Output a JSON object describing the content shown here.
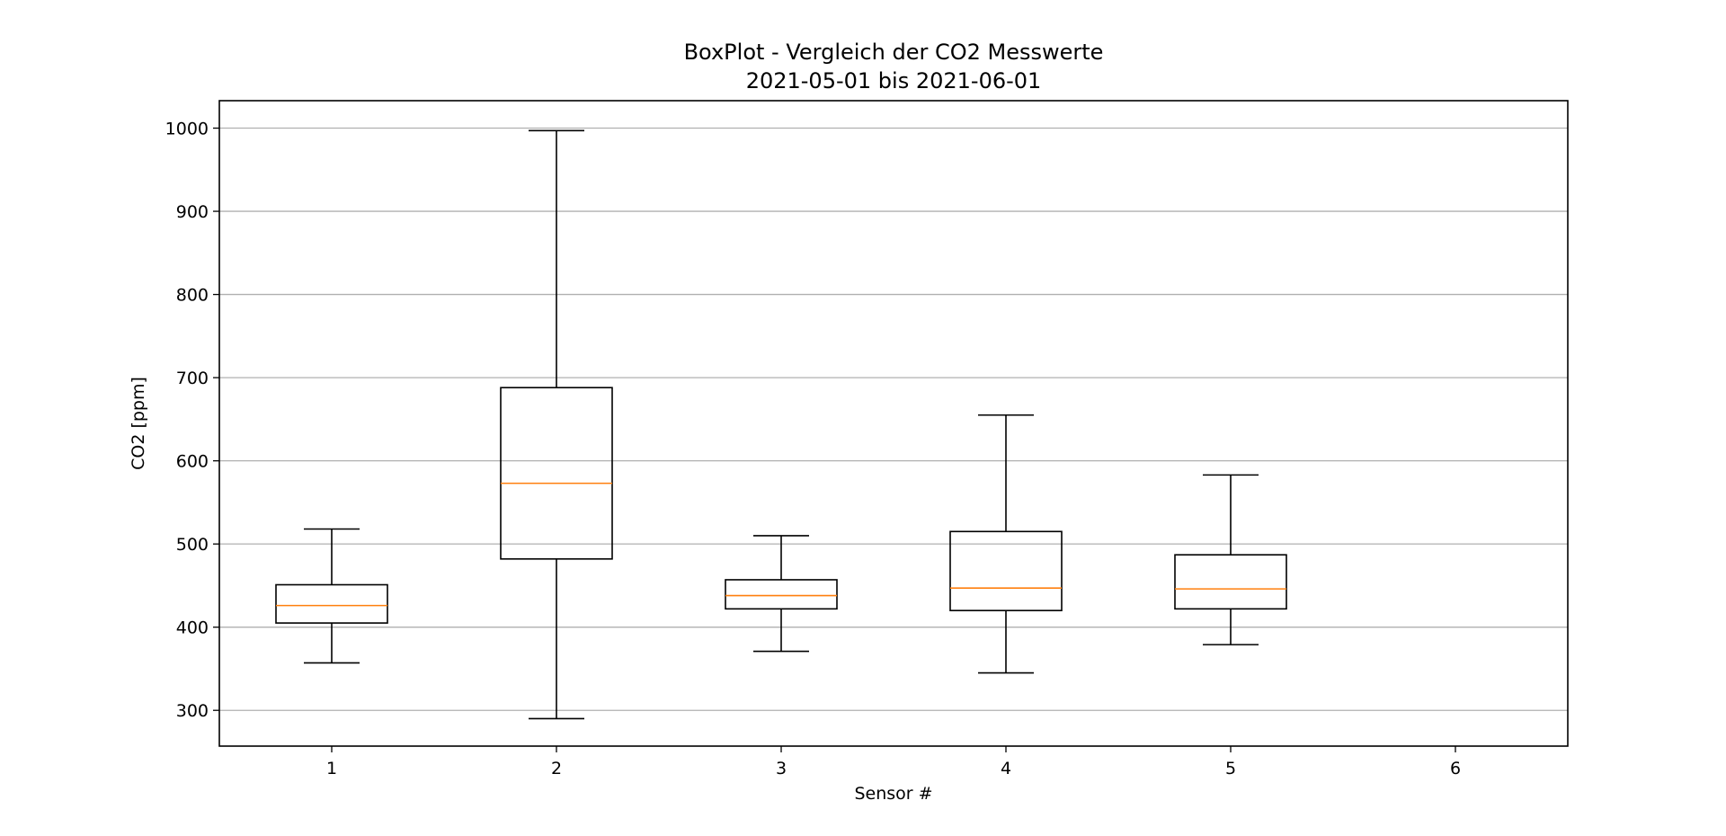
{
  "chart_data": {
    "type": "boxplot",
    "title": [
      "BoxPlot - Vergleich der CO2 Messwerte",
      "2021-05-01 bis 2021-06-01"
    ],
    "xlabel": "Sensor #",
    "ylabel": "CO2 [ppm]",
    "categories": [
      "1",
      "2",
      "3",
      "4",
      "5",
      "6"
    ],
    "yticks": [
      300,
      400,
      500,
      600,
      700,
      800,
      900,
      1000
    ],
    "ylim": [
      257,
      1033
    ],
    "grid": "horizontal",
    "colors": {
      "box": "#000000",
      "median": "#ff7f0e",
      "grid": "#b0b0b0",
      "frame": "#000000"
    },
    "boxes": [
      {
        "sensor": "1",
        "whisker_low": 357,
        "q1": 405,
        "median": 426,
        "q3": 451,
        "whisker_high": 518
      },
      {
        "sensor": "2",
        "whisker_low": 290,
        "q1": 482,
        "median": 573,
        "q3": 688,
        "whisker_high": 997
      },
      {
        "sensor": "3",
        "whisker_low": 371,
        "q1": 422,
        "median": 438,
        "q3": 457,
        "whisker_high": 510
      },
      {
        "sensor": "4",
        "whisker_low": 345,
        "q1": 420,
        "median": 447,
        "q3": 515,
        "whisker_high": 655
      },
      {
        "sensor": "5",
        "whisker_low": 379,
        "q1": 422,
        "median": 446,
        "q3": 487,
        "whisker_high": 583
      }
    ]
  }
}
